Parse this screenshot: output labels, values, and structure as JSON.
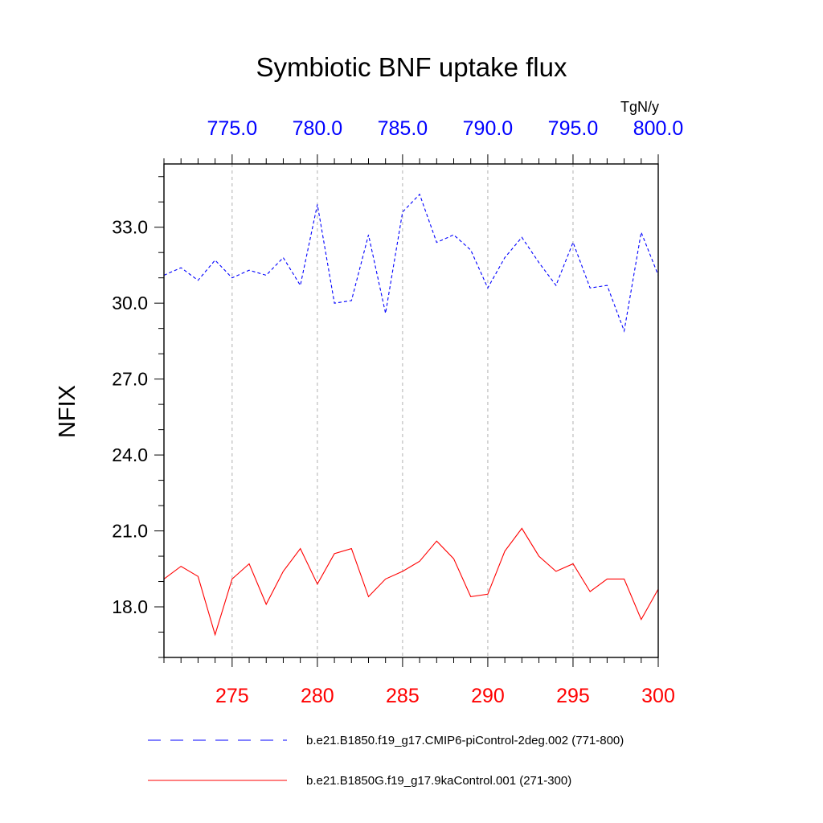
{
  "chart_data": {
    "type": "line",
    "title": "Symbiotic BNF uptake flux",
    "units": "TgN/y",
    "ylabel": "NFIX",
    "ylim": [
      16.0,
      35.5
    ],
    "yticks": [
      "18.0",
      "21.0",
      "24.0",
      "27.0",
      "30.0",
      "33.0"
    ],
    "bottom_axis": {
      "range": [
        271,
        300
      ],
      "ticks": [
        "275",
        "280",
        "285",
        "290",
        "295",
        "300"
      ],
      "color": "#ff0000"
    },
    "top_axis": {
      "range": [
        771,
        800
      ],
      "ticks": [
        "775.0",
        "780.0",
        "785.0",
        "790.0",
        "795.0",
        "800.0"
      ],
      "color": "#0000ff"
    },
    "grid": "vertical dashed at major bottom ticks",
    "series": [
      {
        "name": "b.e21.B1850.f19_g17.CMIP6-piControl-2deg.002 (771-800)",
        "color": "#0000ff",
        "dash": "dashed",
        "x": [
          771,
          772,
          773,
          774,
          775,
          776,
          777,
          778,
          779,
          780,
          781,
          782,
          783,
          784,
          785,
          786,
          787,
          788,
          789,
          790,
          791,
          792,
          793,
          794,
          795,
          796,
          797,
          798,
          799,
          800
        ],
        "values": [
          31.1,
          31.4,
          30.9,
          31.7,
          31.0,
          31.3,
          31.1,
          31.8,
          30.7,
          33.9,
          30.0,
          30.1,
          32.7,
          29.6,
          33.6,
          34.3,
          32.4,
          32.7,
          32.1,
          30.6,
          31.8,
          32.6,
          31.6,
          30.7,
          32.4,
          30.6,
          30.7,
          28.9,
          32.8,
          31.1
        ]
      },
      {
        "name": "b.e21.B1850G.f19_g17.9kaControl.001 (271-300)",
        "color": "#ff0000",
        "dash": "solid",
        "x": [
          271,
          272,
          273,
          274,
          275,
          276,
          277,
          278,
          279,
          280,
          281,
          282,
          283,
          284,
          285,
          286,
          287,
          288,
          289,
          290,
          291,
          292,
          293,
          294,
          295,
          296,
          297,
          298,
          299,
          300
        ],
        "values": [
          19.1,
          19.6,
          19.2,
          16.9,
          19.1,
          19.7,
          18.1,
          19.4,
          20.3,
          18.9,
          20.1,
          20.3,
          18.4,
          19.1,
          19.4,
          19.8,
          20.6,
          19.9,
          18.4,
          18.5,
          20.2,
          21.1,
          20.0,
          19.4,
          19.7,
          18.6,
          19.1,
          19.1,
          17.5,
          18.7
        ]
      }
    ]
  }
}
